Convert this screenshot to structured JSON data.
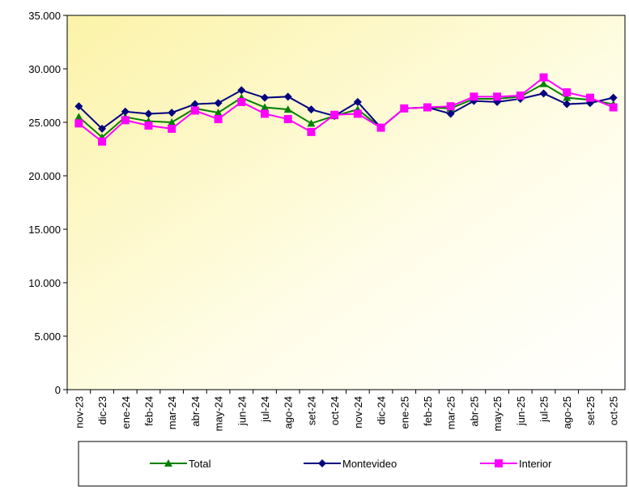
{
  "chart_data": {
    "type": "line",
    "categories": [
      "nov-23",
      "dic-23",
      "ene-24",
      "feb-24",
      "mar-24",
      "abr-24",
      "may-24",
      "jun-24",
      "jul-24",
      "ago-24",
      "set-24",
      "oct-24",
      "nov-24",
      "dic-24",
      "ene-25",
      "feb-25",
      "mar-25",
      "abr-25",
      "may-25",
      "jun-25",
      "jul-25",
      "ago-25",
      "set-25",
      "oct-25"
    ],
    "series": [
      {
        "name": "Total",
        "color": "#008000",
        "marker": "triangle",
        "values": [
          25500,
          23600,
          25500,
          25100,
          25000,
          26300,
          25900,
          27300,
          26400,
          26200,
          24900,
          25600,
          26200,
          24500,
          26300,
          26400,
          26300,
          27200,
          27200,
          27400,
          28600,
          27300,
          27100,
          26700
        ]
      },
      {
        "name": "Montevideo",
        "color": "#000080",
        "marker": "diamond",
        "values": [
          26500,
          24400,
          26000,
          25800,
          25900,
          26700,
          26800,
          28000,
          27300,
          27400,
          26200,
          25600,
          26900,
          24500,
          26300,
          26400,
          25800,
          27000,
          26900,
          27200,
          27700,
          26700,
          26800,
          27300
        ]
      },
      {
        "name": "Interior",
        "color": "#ff00ff",
        "marker": "square",
        "values": [
          24900,
          23200,
          25200,
          24700,
          24400,
          26100,
          25300,
          26900,
          25800,
          25300,
          24100,
          25700,
          25800,
          24500,
          26300,
          26400,
          26500,
          27400,
          27400,
          27500,
          29200,
          27800,
          27300,
          26400
        ]
      }
    ],
    "ylim": [
      0,
      35000
    ],
    "yticks": [
      0,
      {
        "value": 5000,
        "label": "5.000"
      },
      {
        "value": 10000,
        "label": "10.000"
      },
      {
        "value": 15000,
        "label": "15.000"
      },
      {
        "value": 20000,
        "label": "20.000"
      },
      {
        "value": 25000,
        "label": "25.000"
      },
      {
        "value": 30000,
        "label": "30.000"
      },
      {
        "value": 35000,
        "label": "35.000"
      }
    ],
    "legend": "bottom"
  }
}
